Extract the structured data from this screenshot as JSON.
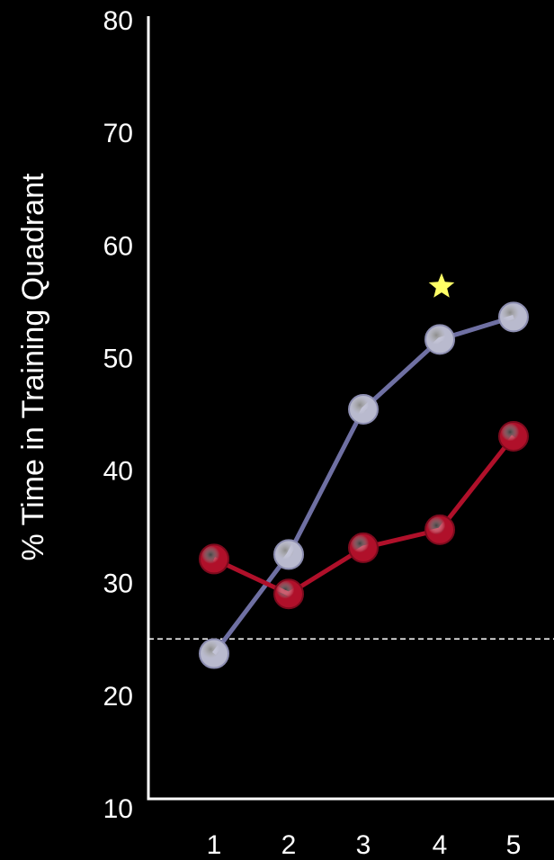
{
  "chart_data": {
    "type": "line",
    "title": "",
    "xlabel": "",
    "ylabel": "% Time in Training Quadrant",
    "ylim": [
      10,
      80
    ],
    "y_ticks": [
      10,
      20,
      30,
      40,
      50,
      60,
      70,
      80
    ],
    "x_ticks": [
      "1",
      "2",
      "3",
      "4",
      "5"
    ],
    "x": [
      1,
      2,
      3,
      4,
      5
    ],
    "grid": false,
    "legend": "none",
    "reference_line": {
      "y": 25,
      "style": "dashed",
      "color": "#ffffff"
    },
    "series": [
      {
        "color": "#6f70a3",
        "marker_color": "#b9bace",
        "values": [
          23.7,
          32.5,
          45.4,
          51.6,
          53.6
        ]
      },
      {
        "color": "#b0102a",
        "marker_color": "#b0102a",
        "values": [
          32.1,
          29.0,
          33.1,
          34.7,
          43.0
        ]
      }
    ],
    "annotations": [
      {
        "type": "star",
        "x": 4,
        "y": 56.3,
        "color": "#ffff66"
      }
    ]
  }
}
